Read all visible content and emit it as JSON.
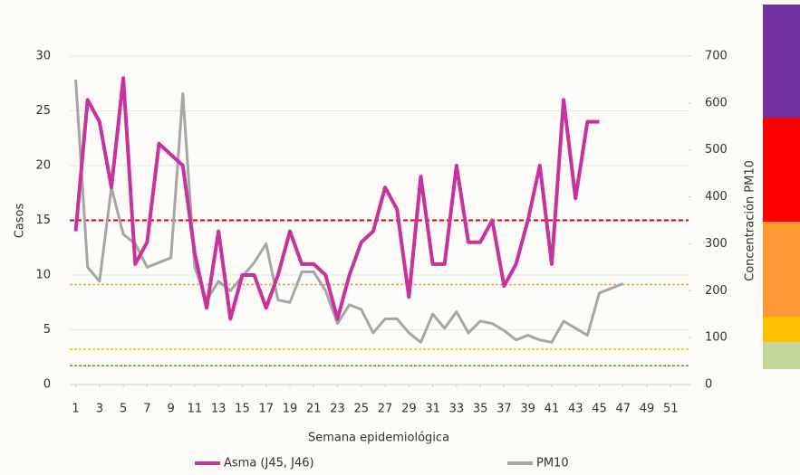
{
  "chart_data": {
    "type": "line",
    "x_label": "Semana epidemiológica",
    "y_label": "Casos",
    "y2_label": "Concentración PM10",
    "x": [
      1,
      2,
      3,
      4,
      5,
      6,
      7,
      8,
      9,
      10,
      11,
      12,
      13,
      14,
      15,
      16,
      17,
      18,
      19,
      20,
      21,
      22,
      23,
      24,
      25,
      26,
      27,
      28,
      29,
      30,
      31,
      32,
      33,
      34,
      35,
      36,
      37,
      38,
      39,
      40,
      41,
      42,
      43,
      44,
      45,
      46,
      47
    ],
    "series": [
      {
        "name": "Asma (J45, J46)",
        "color": "#c8329c",
        "axis": "y",
        "values": [
          14,
          26,
          24,
          18,
          28,
          11,
          13,
          22,
          21,
          20,
          12,
          7,
          14,
          6,
          10,
          10,
          7,
          10,
          14,
          11,
          11,
          10,
          6,
          10,
          13,
          14,
          18,
          16,
          8,
          19,
          11,
          11,
          20,
          13,
          13,
          15,
          9,
          11,
          15,
          20,
          11,
          26,
          17,
          24,
          24,
          null,
          null
        ]
      },
      {
        "name": "PM10",
        "color": "#a6a6a6",
        "axis": "y2",
        "values": [
          650,
          250,
          220,
          420,
          320,
          300,
          250,
          260,
          270,
          620,
          250,
          180,
          220,
          200,
          230,
          260,
          300,
          180,
          175,
          240,
          240,
          200,
          130,
          170,
          160,
          110,
          140,
          140,
          110,
          90,
          150,
          120,
          155,
          110,
          135,
          130,
          115,
          95,
          105,
          95,
          90,
          135,
          120,
          105,
          195,
          205,
          215
        ]
      }
    ],
    "reference_lines": [
      {
        "value": 350,
        "color": "#e00000",
        "axis": "y2"
      },
      {
        "value": 213,
        "color": "#f0a050",
        "axis": "y2"
      },
      {
        "value": 75,
        "color": "#f0c000",
        "axis": "y2"
      },
      {
        "value": 40,
        "color": "#50a030",
        "axis": "y2"
      }
    ],
    "xlim": [
      0.5,
      52.5
    ],
    "xticks": [
      1,
      3,
      5,
      7,
      9,
      11,
      13,
      15,
      17,
      19,
      21,
      23,
      25,
      27,
      29,
      31,
      33,
      35,
      37,
      39,
      41,
      43,
      45,
      47,
      49,
      51
    ],
    "ylim": [
      0,
      30
    ],
    "yticks": [
      0,
      5,
      10,
      15,
      20,
      25,
      30
    ],
    "y2lim": [
      0,
      700
    ],
    "y2ticks": [
      0,
      100,
      200,
      300,
      400,
      500,
      600,
      700
    ],
    "grid": true
  }
}
